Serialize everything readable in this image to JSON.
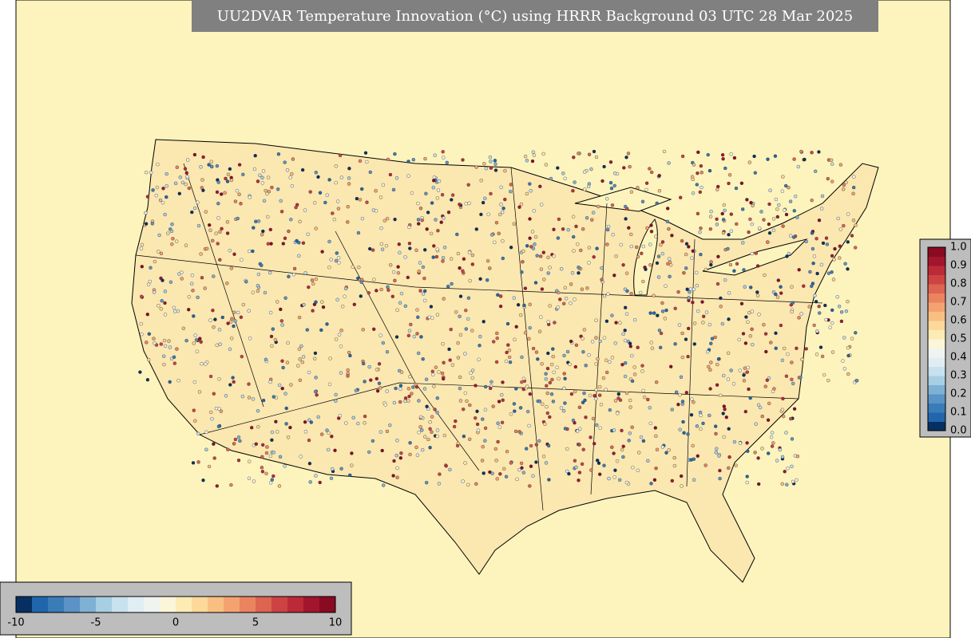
{
  "title": "UU2DVAR Temperature Innovation (°C) using HRRR Background 03 UTC 28 Mar 2025",
  "colorbar_bottom": {
    "ticks": [
      "-10",
      "-5",
      "0",
      "5",
      "10"
    ]
  },
  "colorbar_right": {
    "ticks": [
      "0.0",
      "0.1",
      "0.2",
      "0.3",
      "0.4",
      "0.5",
      "0.6",
      "0.7",
      "0.8",
      "0.9",
      "1.0"
    ]
  }
}
